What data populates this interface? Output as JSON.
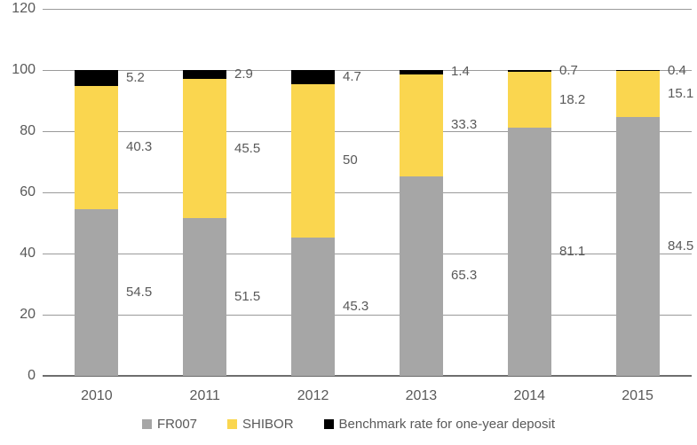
{
  "chart_data": {
    "type": "bar",
    "stacked": true,
    "title": "",
    "xlabel": "",
    "ylabel": "",
    "categories": [
      "2010",
      "2011",
      "2012",
      "2013",
      "2014",
      "2015"
    ],
    "series": [
      {
        "name": "FR007",
        "color": "#A6A6A6",
        "values": [
          54.5,
          51.5,
          45.3,
          65.3,
          81.1,
          84.5
        ]
      },
      {
        "name": "SHIBOR",
        "color": "#FAD64F",
        "values": [
          40.3,
          45.5,
          50,
          33.3,
          18.2,
          15.1
        ]
      },
      {
        "name": "Benchmark rate for one-year deposit",
        "color": "#000000",
        "values": [
          5.2,
          2.9,
          4.7,
          1.4,
          0.7,
          0.4
        ]
      }
    ],
    "yticks": [
      0,
      20,
      40,
      60,
      80,
      100,
      120
    ],
    "ylim": [
      0,
      120
    ],
    "grid": true,
    "legend_position": "bottom",
    "data_labels": "outside-right-of-bar-at-segment-midpoint"
  },
  "colors": {
    "background": "#FFFFFF",
    "text": "#595959",
    "gridline": "#9A9A9A",
    "axis": "#6E6E6E"
  }
}
